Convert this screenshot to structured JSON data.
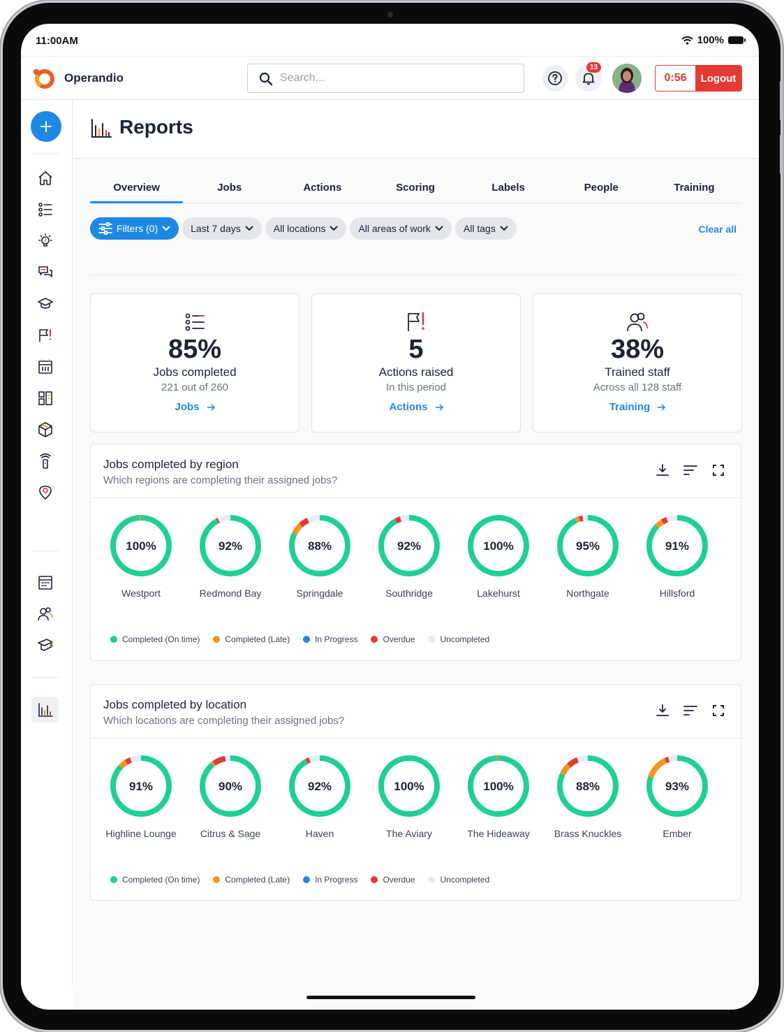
{
  "status": {
    "time": "11:00AM",
    "battery": "100%"
  },
  "app": {
    "brand": "Operandio",
    "search_placeholder": "Search...",
    "notifications_count": "13",
    "timer": "0:56",
    "logout_label": "Logout"
  },
  "page": {
    "title": "Reports"
  },
  "tabs": [
    {
      "label": "Overview",
      "active": true
    },
    {
      "label": "Jobs"
    },
    {
      "label": "Actions"
    },
    {
      "label": "Scoring"
    },
    {
      "label": "Labels"
    },
    {
      "label": "People"
    },
    {
      "label": "Training"
    }
  ],
  "filters": {
    "filters_label": "Filters (0)",
    "period": "Last 7 days",
    "locations": "All locations",
    "areas": "All areas of work",
    "tags": "All tags",
    "clear_all": "Clear all"
  },
  "stats": [
    {
      "icon": "checklist-icon",
      "value": "85%",
      "label": "Jobs completed",
      "sub": "221 out of 260",
      "link": "Jobs"
    },
    {
      "icon": "flag-icon",
      "value": "5",
      "label": "Actions raised",
      "sub": "In this period",
      "link": "Actions"
    },
    {
      "icon": "people-icon",
      "value": "38%",
      "label": "Trained staff",
      "sub": "Across all 128 staff",
      "link": "Training"
    }
  ],
  "colors": {
    "accent": "#1e88e5",
    "danger": "#e53935",
    "on_time": "#1fcf94",
    "late": "#f7941d",
    "in_progress": "#1e88e5",
    "overdue": "#e53935",
    "uncompleted": "#dfeefc"
  },
  "legend": [
    "Completed (On time)",
    "Completed (Late)",
    "In Progress",
    "Overdue",
    "Uncompleted"
  ],
  "region_panel": {
    "title": "Jobs completed by region",
    "subtitle": "Which regions are completing their assigned jobs?",
    "items": [
      {
        "name": "Westport",
        "value": "100%",
        "on_time": 99,
        "late": 1,
        "overdue": 0,
        "uncompleted": 0
      },
      {
        "name": "Redmond Bay",
        "value": "92%",
        "on_time": 92,
        "late": 0,
        "overdue": 1,
        "uncompleted": 7
      },
      {
        "name": "Springdale",
        "value": "88%",
        "on_time": 82,
        "late": 6,
        "overdue": 5,
        "uncompleted": 7
      },
      {
        "name": "Southridge",
        "value": "92%",
        "on_time": 92,
        "late": 0,
        "overdue": 3,
        "uncompleted": 5
      },
      {
        "name": "Lakehurst",
        "value": "100%",
        "on_time": 100,
        "late": 0,
        "overdue": 0,
        "uncompleted": 0
      },
      {
        "name": "Northgate",
        "value": "95%",
        "on_time": 93,
        "late": 2,
        "overdue": 2,
        "uncompleted": 3
      },
      {
        "name": "Hillsford",
        "value": "91%",
        "on_time": 87,
        "late": 4,
        "overdue": 3,
        "uncompleted": 6
      }
    ]
  },
  "location_panel": {
    "title": "Jobs completed by location",
    "subtitle": "Which locations are completing their assigned jobs?",
    "items": [
      {
        "name": "Highline Lounge",
        "value": "91%",
        "on_time": 87,
        "late": 4,
        "overdue": 3,
        "uncompleted": 6
      },
      {
        "name": "Citrus & Sage",
        "value": "90%",
        "on_time": 89,
        "late": 1,
        "overdue": 7,
        "uncompleted": 3
      },
      {
        "name": "Haven",
        "value": "92%",
        "on_time": 92,
        "late": 0,
        "overdue": 2,
        "uncompleted": 6
      },
      {
        "name": "The Aviary",
        "value": "100%",
        "on_time": 100,
        "late": 0,
        "overdue": 0,
        "uncompleted": 0
      },
      {
        "name": "The Hideaway",
        "value": "100%",
        "on_time": 99,
        "late": 1,
        "overdue": 0,
        "uncompleted": 0
      },
      {
        "name": "Brass Knuckles",
        "value": "88%",
        "on_time": 82,
        "late": 6,
        "overdue": 6,
        "uncompleted": 6
      },
      {
        "name": "Ember",
        "value": "93%",
        "on_time": 80,
        "late": 13,
        "overdue": 2,
        "uncompleted": 5
      }
    ]
  }
}
